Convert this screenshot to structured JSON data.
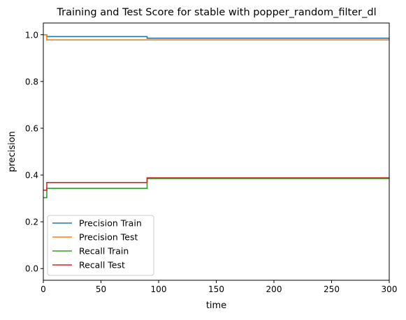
{
  "chart_data": {
    "type": "line",
    "title": "Training and Test Score for stable with popper_random_filter_dl",
    "xlabel": "time",
    "ylabel": "precision",
    "xlim": [
      0,
      300
    ],
    "ylim": [
      -0.05,
      1.05
    ],
    "xticks": [
      0,
      50,
      100,
      150,
      200,
      250,
      300
    ],
    "yticks": [
      0.0,
      0.2,
      0.4,
      0.6,
      0.8,
      1.0
    ],
    "xtick_labels": [
      "0",
      "50",
      "100",
      "150",
      "200",
      "250",
      "300"
    ],
    "ytick_labels": [
      "0.0",
      "0.2",
      "0.4",
      "0.6",
      "0.8",
      "1.0"
    ],
    "grid": false,
    "legend_position": "lower-left",
    "step": "post",
    "series": [
      {
        "name": "Precision Train",
        "color": "#1f77b4",
        "x": [
          0,
          2,
          3,
          89,
          90,
          300
        ],
        "y": [
          1.0,
          1.0,
          0.992,
          0.992,
          0.985,
          0.985
        ]
      },
      {
        "name": "Precision Test",
        "color": "#ff7f0e",
        "x": [
          0,
          3,
          300
        ],
        "y": [
          1.0,
          0.978,
          0.978
        ]
      },
      {
        "name": "Recall Train",
        "color": "#2ca02c",
        "x": [
          0,
          3,
          89,
          90,
          300
        ],
        "y": [
          0.303,
          0.343,
          0.343,
          0.385,
          0.385
        ]
      },
      {
        "name": "Recall Test",
        "color": "#d62728",
        "x": [
          0,
          3,
          89,
          90,
          300
        ],
        "y": [
          0.335,
          0.368,
          0.368,
          0.388,
          0.388
        ]
      }
    ]
  }
}
